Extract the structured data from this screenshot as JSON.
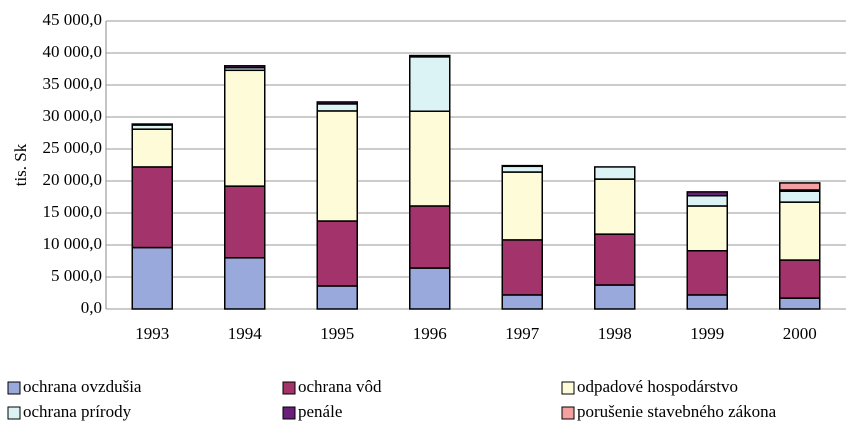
{
  "chart_data": {
    "type": "bar",
    "stacked": true,
    "y_label": "tis. Sk",
    "categories": [
      "1993",
      "1994",
      "1995",
      "1996",
      "1997",
      "1998",
      "1999",
      "2000"
    ],
    "series": [
      {
        "name": "ochrana ovzdušia",
        "color": "#9aa9dc",
        "values": [
          9600,
          8000,
          3600,
          6400,
          2200,
          3750,
          2200,
          1700
        ]
      },
      {
        "name": "ochrana vôd",
        "color": "#a3336b",
        "values": [
          12600,
          11200,
          10150,
          9700,
          8600,
          7950,
          6900,
          5950
        ]
      },
      {
        "name": "odpadové hospodárstvo",
        "color": "#fdfbd8",
        "values": [
          5900,
          18100,
          17200,
          14800,
          10600,
          8600,
          7000,
          9050
        ]
      },
      {
        "name": "ochrana prírody",
        "color": "#dbf3f4",
        "values": [
          650,
          400,
          1100,
          8500,
          900,
          1900,
          1600,
          1700
        ]
      },
      {
        "name": "penále",
        "color": "#6a1f7a",
        "values": [
          150,
          300,
          300,
          200,
          100,
          0,
          600,
          200
        ]
      },
      {
        "name": "porušenie stavebného zákona",
        "color": "#f4a0a0",
        "values": [
          0,
          0,
          0,
          0,
          0,
          0,
          0,
          1100
        ]
      }
    ],
    "ylim": [
      0,
      45000
    ],
    "yticks": [
      {
        "value": 0,
        "label": "0,0"
      },
      {
        "value": 5000,
        "label": "5 000,0"
      },
      {
        "value": 10000,
        "label": "10 000,0"
      },
      {
        "value": 15000,
        "label": "15 000,0"
      },
      {
        "value": 20000,
        "label": "20 000,0"
      },
      {
        "value": 25000,
        "label": "25 000,0"
      },
      {
        "value": 30000,
        "label": "30 000,0"
      },
      {
        "value": 35000,
        "label": "35 000,0"
      },
      {
        "value": 40000,
        "label": "40 000,0"
      },
      {
        "value": 45000,
        "label": "45 000,0"
      }
    ],
    "grid": true,
    "legend": "bottom"
  }
}
